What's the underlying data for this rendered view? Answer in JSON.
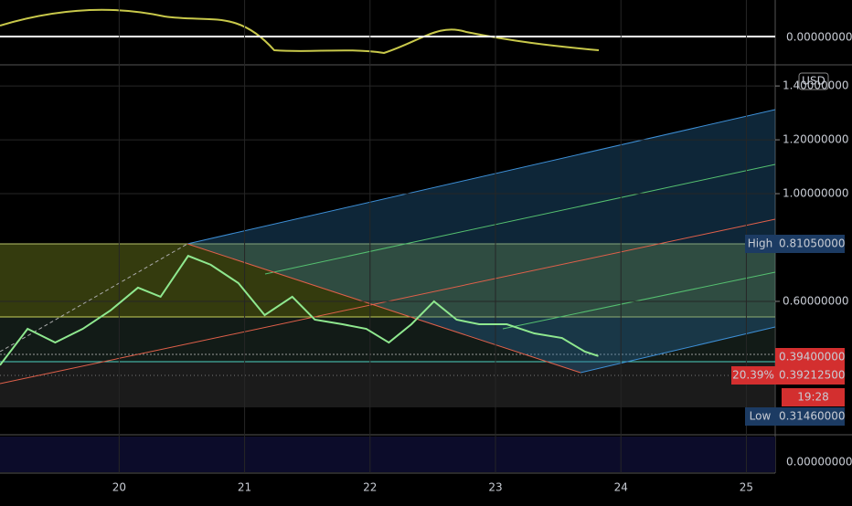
{
  "chart_data": {
    "type": "line",
    "x": [
      19.05,
      19.27,
      19.49,
      19.71,
      19.93,
      20.15,
      20.33,
      20.55,
      20.73,
      20.95,
      21.16,
      21.38,
      21.56,
      21.78,
      21.97,
      22.15,
      22.33,
      22.51,
      22.69,
      22.87,
      23.09,
      23.31,
      23.53,
      23.71,
      23.82
    ],
    "values": [
      0.363,
      0.498,
      0.447,
      0.498,
      0.566,
      0.651,
      0.617,
      0.769,
      0.736,
      0.668,
      0.549,
      0.617,
      0.532,
      0.515,
      0.498,
      0.447,
      0.515,
      0.6,
      0.532,
      0.515,
      0.515,
      0.481,
      0.464,
      0.414,
      0.397
    ],
    "color": "#8fe88f",
    "xlim": [
      19.05,
      25.23
    ],
    "xticks": [
      20,
      21,
      22,
      23,
      24,
      25
    ],
    "ylim": [
      0.108,
      1.475
    ],
    "yticks": [
      {
        "value": 1.4,
        "label": "1.40000000"
      },
      {
        "value": 1.2,
        "label": "1.20000000"
      },
      {
        "value": 1.0,
        "label": "1.00000000"
      },
      {
        "value": 0.6,
        "label": "0.60000000"
      }
    ],
    "grid": true,
    "currency": "USD",
    "oscillator_zero": "0.00000000",
    "volume_zero": "0.00000000",
    "badges": [
      {
        "tag": "High",
        "text": "0.81050000",
        "color": "#1c3b63"
      },
      {
        "text": "0.39400000",
        "color": "#d32f2f"
      },
      {
        "tag": "20.39%",
        "text": "0.39212500",
        "color": "#d32f2f"
      },
      {
        "text": "19:28",
        "color": "#d32f2f"
      },
      {
        "tag": "Low",
        "text": "0.31460000",
        "color": "#1c3b63"
      }
    ]
  }
}
